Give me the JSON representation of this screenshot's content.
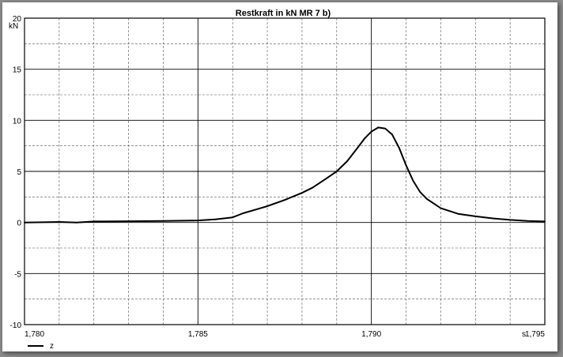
{
  "chart_data": {
    "type": "line",
    "title": "Restkraft in kN MR 7 b)",
    "ylabel": "kN",
    "xlabel": "s",
    "xlim": [
      1.78,
      1.795
    ],
    "ylim": [
      -10,
      20
    ],
    "x_major_ticks": [
      1.78,
      1.785,
      1.79,
      1.795
    ],
    "x_tick_labels": [
      "1,780",
      "1,785",
      "1,790",
      "1,795"
    ],
    "y_major_ticks": [
      -10,
      -5,
      0,
      5,
      10,
      15,
      20
    ],
    "y_tick_labels": [
      "-10",
      "-5",
      "0",
      "5",
      "10",
      "15",
      "20"
    ],
    "grid": true,
    "legend_position": "bottom-left",
    "series_color": "#000000",
    "series": [
      {
        "name": "z",
        "x": [
          1.78,
          1.781,
          1.7815,
          1.782,
          1.783,
          1.784,
          1.785,
          1.7855,
          1.786,
          1.7863,
          1.7867,
          1.787,
          1.7875,
          1.788,
          1.7883,
          1.7887,
          1.789,
          1.7893,
          1.7896,
          1.7898,
          1.79,
          1.7902,
          1.7904,
          1.7906,
          1.7908,
          1.791,
          1.7912,
          1.7914,
          1.7916,
          1.792,
          1.7925,
          1.793,
          1.7935,
          1.794,
          1.7945,
          1.795
        ],
        "y": [
          0.0,
          0.05,
          0.0,
          0.1,
          0.12,
          0.15,
          0.2,
          0.3,
          0.5,
          0.9,
          1.3,
          1.6,
          2.2,
          2.9,
          3.4,
          4.3,
          5.0,
          6.0,
          7.3,
          8.2,
          8.9,
          9.3,
          9.2,
          8.6,
          7.3,
          5.6,
          4.1,
          3.0,
          2.3,
          1.4,
          0.85,
          0.6,
          0.4,
          0.25,
          0.15,
          0.1
        ]
      }
    ]
  }
}
